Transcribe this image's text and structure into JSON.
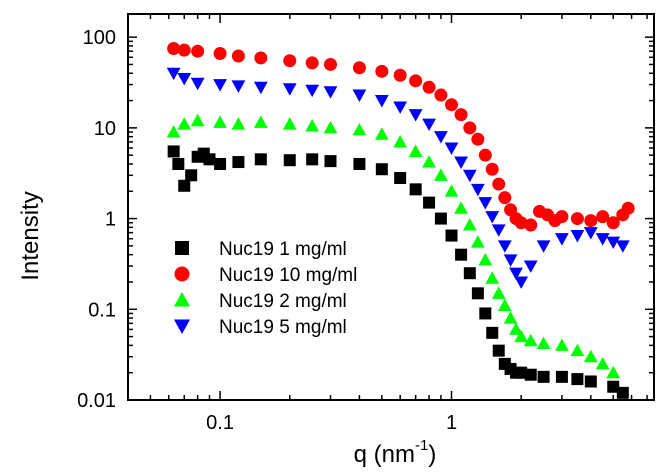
{
  "chart_data": {
    "type": "scatter",
    "xscale": "log",
    "yscale": "log",
    "xlim": [
      0.04,
      7.5
    ],
    "ylim": [
      0.01,
      180
    ],
    "xlabel": "q (nm",
    "xlabel_sup": "-1",
    "xlabel_end": ")",
    "ylabel": "Intensity",
    "x_ticks": [
      {
        "value": 0.1,
        "label": "0.1"
      },
      {
        "value": 1,
        "label": "1"
      }
    ],
    "y_ticks": [
      {
        "value": 0.01,
        "label": "0.01"
      },
      {
        "value": 0.1,
        "label": "0.1"
      },
      {
        "value": 1,
        "label": "1"
      },
      {
        "value": 10,
        "label": "10"
      },
      {
        "value": 100,
        "label": "100"
      }
    ],
    "legend_position": "lower-left",
    "series": [
      {
        "name": "Nuc19 1 mg/ml",
        "marker": "square",
        "color": "#000000",
        "x": [
          0.063,
          0.066,
          0.07,
          0.075,
          0.08,
          0.085,
          0.09,
          0.1,
          0.12,
          0.15,
          0.2,
          0.25,
          0.3,
          0.4,
          0.5,
          0.6,
          0.7,
          0.8,
          0.9,
          1.0,
          1.1,
          1.2,
          1.3,
          1.4,
          1.5,
          1.6,
          1.7,
          1.8,
          1.9,
          2.0,
          2.2,
          2.5,
          3.0,
          3.5,
          4.0,
          5.0,
          5.5
        ],
        "y": [
          5.5,
          4.0,
          2.3,
          3.0,
          4.8,
          5.2,
          4.5,
          4.0,
          4.2,
          4.5,
          4.4,
          4.5,
          4.3,
          4.0,
          3.5,
          2.8,
          2.1,
          1.5,
          1.0,
          0.65,
          0.4,
          0.25,
          0.15,
          0.09,
          0.055,
          0.035,
          0.025,
          0.022,
          0.02,
          0.02,
          0.019,
          0.018,
          0.018,
          0.017,
          0.016,
          0.014,
          0.012
        ]
      },
      {
        "name": "Nuc19 10 mg/ml",
        "marker": "circle",
        "color": "#ff0000",
        "x": [
          0.063,
          0.07,
          0.08,
          0.1,
          0.12,
          0.15,
          0.2,
          0.25,
          0.3,
          0.4,
          0.5,
          0.6,
          0.7,
          0.8,
          0.9,
          1.0,
          1.1,
          1.2,
          1.3,
          1.4,
          1.5,
          1.6,
          1.7,
          1.8,
          1.9,
          2.0,
          2.2,
          2.4,
          2.6,
          2.8,
          3.0,
          3.5,
          4.0,
          4.5,
          5.0,
          5.5,
          5.8
        ],
        "y": [
          75,
          72,
          70,
          66,
          62,
          59,
          55,
          52,
          50,
          46,
          42,
          38,
          33,
          28,
          23,
          18,
          14,
          10,
          7.5,
          5.0,
          3.5,
          2.4,
          1.7,
          1.25,
          1.0,
          0.9,
          0.85,
          1.2,
          1.1,
          0.95,
          1.05,
          1.0,
          0.95,
          1.05,
          0.9,
          1.1,
          1.3
        ]
      },
      {
        "name": "Nuc19 2 mg/ml",
        "marker": "triangle-up",
        "color": "#00ff00",
        "x": [
          0.063,
          0.07,
          0.08,
          0.1,
          0.12,
          0.15,
          0.2,
          0.25,
          0.3,
          0.4,
          0.5,
          0.6,
          0.7,
          0.8,
          0.9,
          1.0,
          1.1,
          1.2,
          1.3,
          1.4,
          1.5,
          1.6,
          1.7,
          1.8,
          1.9,
          2.0,
          2.2,
          2.5,
          3.0,
          3.5,
          4.0,
          4.5,
          5.0
        ],
        "y": [
          9.0,
          11,
          12,
          11.5,
          11,
          11.5,
          11,
          10.5,
          10,
          9.5,
          8.5,
          7.0,
          5.5,
          4.2,
          3.0,
          2.0,
          1.3,
          0.85,
          0.55,
          0.35,
          0.22,
          0.15,
          0.11,
          0.08,
          0.06,
          0.05,
          0.045,
          0.042,
          0.04,
          0.035,
          0.03,
          0.025,
          0.02
        ]
      },
      {
        "name": "Nuc19 5 mg/ml",
        "marker": "triangle-down",
        "color": "#0000ff",
        "x": [
          0.063,
          0.07,
          0.08,
          0.1,
          0.12,
          0.15,
          0.2,
          0.25,
          0.3,
          0.4,
          0.5,
          0.6,
          0.7,
          0.8,
          0.9,
          1.0,
          1.1,
          1.2,
          1.3,
          1.4,
          1.5,
          1.6,
          1.7,
          1.8,
          1.9,
          2.0,
          2.2,
          2.5,
          3.0,
          3.5,
          4.0,
          4.5,
          5.0,
          5.5
        ],
        "y": [
          40,
          35,
          31,
          30,
          29,
          28,
          27,
          26,
          25,
          23,
          20,
          17,
          14,
          11,
          8.0,
          6.0,
          4.2,
          3.0,
          2.1,
          1.5,
          1.05,
          0.75,
          0.5,
          0.35,
          0.25,
          0.2,
          0.3,
          0.5,
          0.6,
          0.65,
          0.7,
          0.6,
          0.55,
          0.5
        ]
      }
    ]
  }
}
